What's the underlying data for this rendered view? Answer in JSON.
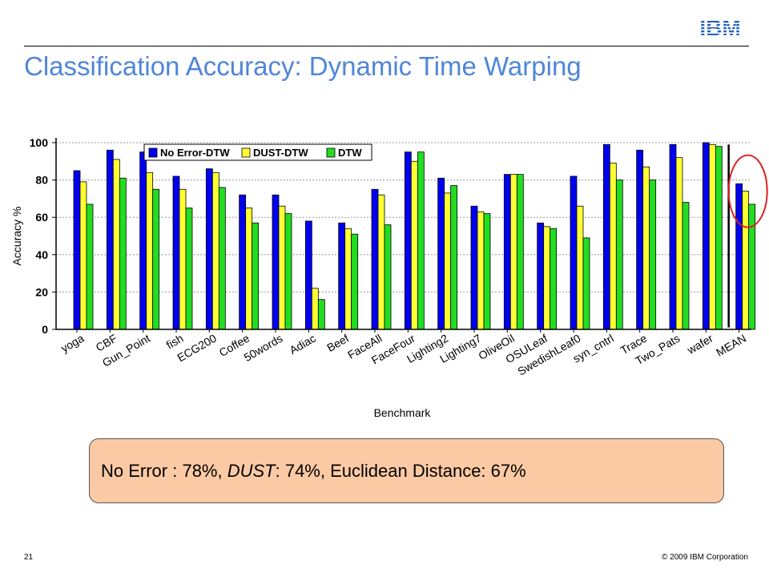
{
  "slide": {
    "title": "Classification Accuracy: Dynamic Time Warping",
    "logo_text": "IBM",
    "page_number": "21",
    "copyright": "© 2009 IBM Corporation"
  },
  "callout": {
    "part1": "No Error : 78%, ",
    "part2": "DUST",
    "part3": ": 74%, Euclidean Distance: 67%"
  },
  "colors": {
    "title": "#4f86d9",
    "callout_bg": "#fbc9a3",
    "series": [
      "#0000ee",
      "#ffff33",
      "#22dd22"
    ],
    "highlight_circle": "#dd2222"
  },
  "chart_data": {
    "type": "bar",
    "title": "",
    "xlabel": "Benchmark",
    "ylabel": "Accuracy %",
    "ylim": [
      0,
      100
    ],
    "yticks": [
      0,
      20,
      40,
      60,
      80,
      100
    ],
    "grid": true,
    "legend_position": "top-left",
    "categories": [
      "yoga",
      "CBF",
      "Gun_Point",
      "fish",
      "ECG200",
      "Coffee",
      "50words",
      "Adiac",
      "Beef",
      "FaceAll",
      "FaceFour",
      "Lighting2",
      "Lighting7",
      "OliveOil",
      "OSULeaf",
      "SwedishLeaf0",
      "syn_cntrl",
      "Trace",
      "Two_Pats",
      "wafer",
      "MEAN"
    ],
    "series": [
      {
        "name": "No Error-DTW",
        "values": [
          85,
          96,
          95,
          82,
          86,
          72,
          72,
          58,
          57,
          75,
          95,
          81,
          66,
          83,
          57,
          82,
          99,
          96,
          99,
          100,
          78
        ]
      },
      {
        "name": "DUST-DTW",
        "values": [
          79,
          91,
          84,
          75,
          84,
          65,
          66,
          22,
          54,
          72,
          90,
          73,
          63,
          83,
          55,
          66,
          89,
          87,
          92,
          99,
          74
        ]
      },
      {
        "name": "DTW",
        "values": [
          67,
          81,
          75,
          65,
          76,
          57,
          62,
          16,
          51,
          56,
          95,
          77,
          62,
          83,
          54,
          49,
          80,
          80,
          68,
          98,
          67
        ]
      }
    ],
    "annotations": [
      "vertical-separator-before-MEAN",
      "circle-around-MEAN"
    ]
  }
}
